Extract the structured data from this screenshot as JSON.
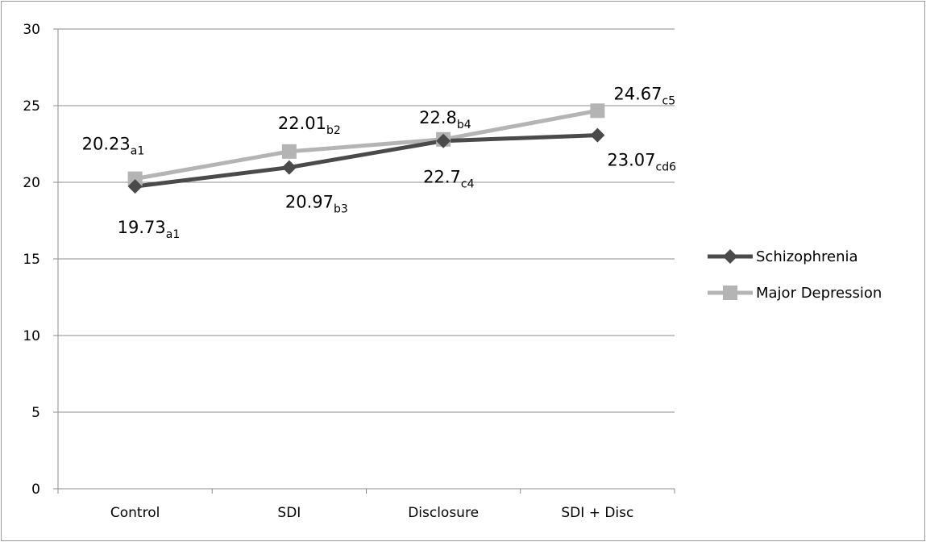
{
  "chart_data": {
    "type": "line",
    "title": "",
    "xlabel": "",
    "ylabel": "",
    "categories": [
      "Control",
      "SDI",
      "Disclosure",
      "SDI + Disc"
    ],
    "ylim": [
      0,
      30
    ],
    "yticks": [
      0,
      5,
      10,
      15,
      20,
      25,
      30
    ],
    "grid": "horizontal",
    "legend_position": "right",
    "series": [
      {
        "name": "Schizophrenia",
        "color": "#4a4a4a",
        "marker": "diamond",
        "values": [
          19.73,
          20.97,
          22.7,
          23.07
        ],
        "labels": [
          {
            "value": "19.73",
            "sub": "a1"
          },
          {
            "value": "20.97",
            "sub": "b3"
          },
          {
            "value": "22.7",
            "sub": "c4"
          },
          {
            "value": "23.07",
            "sub": "cd6"
          }
        ]
      },
      {
        "name": "Major Depression",
        "color": "#b4b4b4",
        "marker": "square",
        "values": [
          20.23,
          22.01,
          22.8,
          24.67
        ],
        "labels": [
          {
            "value": "20.23",
            "sub": "a1"
          },
          {
            "value": "22.01",
            "sub": "b2"
          },
          {
            "value": "22.8",
            "sub": "b4"
          },
          {
            "value": "24.67",
            "sub": "c5"
          }
        ]
      }
    ]
  }
}
